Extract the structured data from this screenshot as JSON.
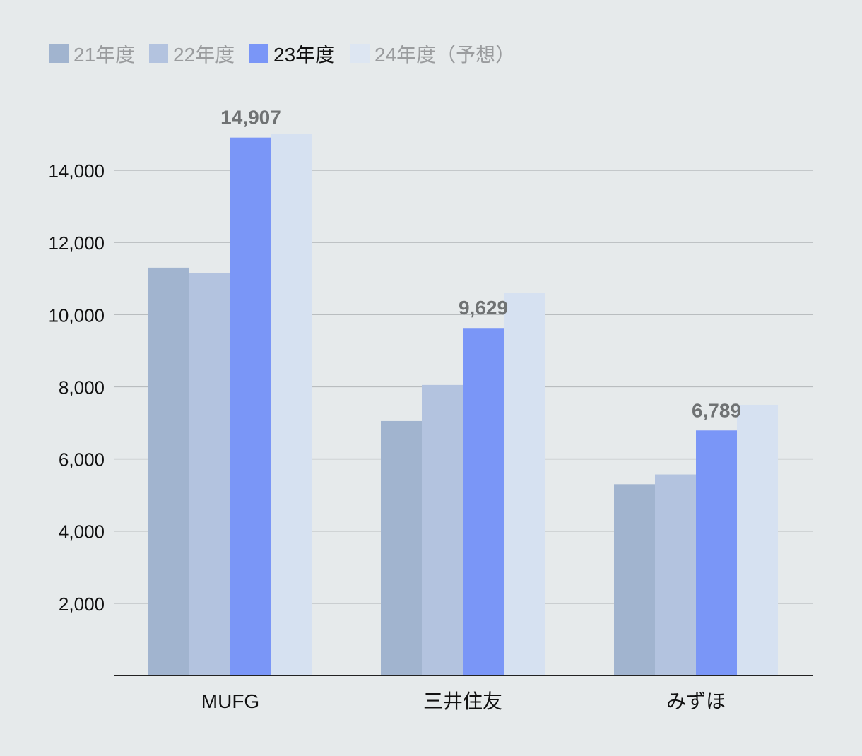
{
  "chart_data": {
    "type": "bar",
    "title": "",
    "xlabel": "",
    "ylabel": "",
    "categories": [
      "MUFG",
      "三井住友",
      "みずほ"
    ],
    "series": [
      {
        "name": "21年度",
        "values": [
          11300,
          7050,
          5300
        ],
        "color": "#a1b4cf",
        "legend_color": "#a1b4cf",
        "legend_text_color": "#9a9c9e"
      },
      {
        "name": "22年度",
        "values": [
          11150,
          8050,
          5570
        ],
        "color": "#b3c3df",
        "legend_color": "#b3c3df",
        "legend_text_color": "#9a9c9e"
      },
      {
        "name": "23年度",
        "values": [
          14907,
          9629,
          6789
        ],
        "color": "#7a96f7",
        "legend_color": "#7a96f7",
        "legend_text_color": "#111111",
        "value_labels": [
          "14,907",
          "9,629",
          "6,789"
        ]
      },
      {
        "name": "24年度（予想）",
        "values": [
          15000,
          10600,
          7500
        ],
        "color": "#d6e1f1",
        "legend_color": "#dde6f2",
        "legend_text_color": "#9a9c9e"
      }
    ],
    "ylim": [
      0,
      15500
    ],
    "yticks": [
      2000,
      4000,
      6000,
      8000,
      10000,
      12000,
      14000
    ],
    "ytick_labels": [
      "2,000",
      "4,000",
      "6,000",
      "8,000",
      "10,000",
      "12,000",
      "14,000"
    ],
    "grid": true,
    "legend_position": "top-left",
    "colors": {
      "background": "#e6eaeb",
      "grid": "#b9bdbf",
      "axis": "#222222"
    }
  }
}
